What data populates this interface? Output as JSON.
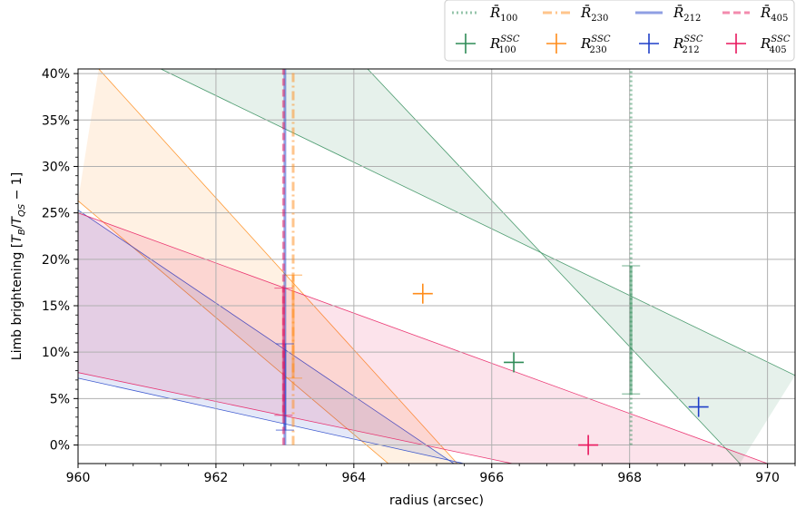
{
  "chart_data": {
    "type": "scatter",
    "xlabel": "radius (arcsec)",
    "ylabel": "Limb brightening [T_B/T_QS − 1]",
    "ylabel_parts": {
      "prefix": "Limb brightening [",
      "T": "T",
      "B": "B",
      "slash": "/",
      "T2": "T",
      "QS": "QS",
      "suffix": " − 1]"
    },
    "xlim": [
      960,
      970.4
    ],
    "ylim": [
      -2,
      40.5
    ],
    "x_ticks": [
      960,
      962,
      964,
      966,
      968,
      970
    ],
    "x_tick_labels": [
      "960",
      "962",
      "964",
      "966",
      "968",
      "970"
    ],
    "y_ticks": [
      0,
      5,
      10,
      15,
      20,
      25,
      30,
      35,
      40
    ],
    "y_tick_labels": [
      "0%",
      "5%",
      "10%",
      "15%",
      "20%",
      "25%",
      "30%",
      "35%",
      "40%"
    ],
    "grid": true,
    "legend_position": "top-right, above plot",
    "series": [
      {
        "name": "R̄100",
        "key": "100",
        "color": "#2e8b57",
        "line_style": "dotted",
        "rbar": 968.02,
        "rbar_y_range": [
          0,
          40.5
        ],
        "rbar_error": {
          "y_low": 5.5,
          "y_high": 19.3
        },
        "band": {
          "upper": [
            [
              961.2,
              40.5
            ],
            [
              970.4,
              7.5
            ]
          ],
          "lower": [
            [
              964.2,
              40.5
            ],
            [
              969.6,
              -2
            ]
          ]
        },
        "ssc_point": {
          "x": 966.32,
          "y": 8.9
        }
      },
      {
        "name": "R̄230",
        "key": "230",
        "color": "#ff8c1a",
        "line_style": "dashdot",
        "rbar": 963.12,
        "rbar_y_range": [
          0,
          40.5
        ],
        "rbar_error": {
          "y_low": 7.2,
          "y_high": 18.3
        },
        "band": {
          "upper": [
            [
              960.3,
              40.5
            ],
            [
              965.5,
              -2
            ]
          ],
          "lower": [
            [
              960,
              26.3
            ],
            [
              964.5,
              -2
            ]
          ]
        },
        "ssc_point": {
          "x": 965.0,
          "y": 16.3
        }
      },
      {
        "name": "R̄212",
        "key": "212",
        "color": "#1f3fc8",
        "line_style": "solid",
        "rbar": 963.0,
        "rbar_y_range": [
          0,
          40.5
        ],
        "rbar_error": {
          "y_low": 1.6,
          "y_high": 10.9
        },
        "band": {
          "upper": [
            [
              960,
              25.3
            ],
            [
              965.45,
              -2
            ]
          ],
          "lower": [
            [
              960,
              7.2
            ],
            [
              965.6,
              -2
            ]
          ]
        },
        "ssc_point": {
          "x": 969.0,
          "y": 4.1
        }
      },
      {
        "name": "R̄405",
        "key": "405",
        "color": "#e8175d",
        "line_style": "dashed",
        "rbar": 962.98,
        "rbar_y_range": [
          0,
          40.5
        ],
        "rbar_error": {
          "y_low": 3.2,
          "y_high": 16.9
        },
        "band": {
          "upper": [
            [
              960,
              25.0
            ],
            [
              970.0,
              -2
            ]
          ],
          "lower": [
            [
              960,
              7.8
            ],
            [
              966.3,
              -2
            ]
          ]
        },
        "ssc_point": {
          "x": 967.4,
          "y": 0.0
        }
      }
    ],
    "legend": {
      "rows": [
        [
          {
            "key": "100",
            "kind": "line",
            "label_base": "R̄",
            "label_sub": "100",
            "label_sup": ""
          },
          {
            "key": "230",
            "kind": "line",
            "label_base": "R̄",
            "label_sub": "230",
            "label_sup": ""
          },
          {
            "key": "212",
            "kind": "line",
            "label_base": "R̄",
            "label_sub": "212",
            "label_sup": ""
          },
          {
            "key": "405",
            "kind": "line",
            "label_base": "R̄",
            "label_sub": "405",
            "label_sup": ""
          }
        ],
        [
          {
            "key": "100",
            "kind": "cross",
            "label_base": "R",
            "label_sub": "100",
            "label_sup": "SSC"
          },
          {
            "key": "230",
            "kind": "cross",
            "label_base": "R",
            "label_sub": "230",
            "label_sup": "SSC"
          },
          {
            "key": "212",
            "kind": "cross",
            "label_base": "R",
            "label_sub": "212",
            "label_sup": "SSC"
          },
          {
            "key": "405",
            "kind": "cross",
            "label_base": "R",
            "label_sub": "405",
            "label_sup": "SSC"
          }
        ]
      ]
    }
  }
}
